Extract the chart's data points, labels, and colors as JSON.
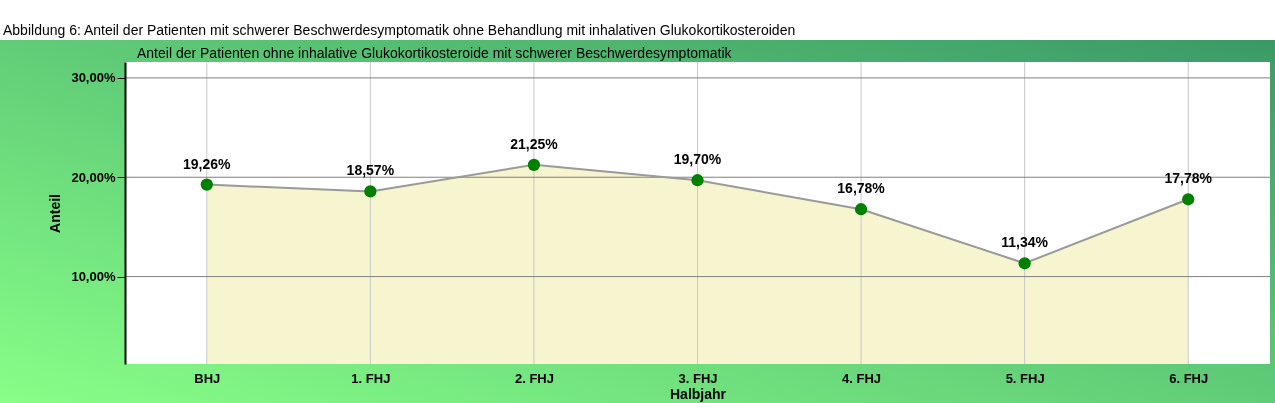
{
  "chart_data": {
    "type": "area",
    "title": "Abbildung 6: Anteil der Patienten mit schwerer Beschwerdesymptomatik ohne Behandlung mit inhalativen Glukokortikosteroiden",
    "subtitle": "Anteil der Patienten ohne inhalative Glukokortikosteroide mit schwerer Beschwerdesymptomatik",
    "xlabel": "Halbjahr",
    "ylabel": "Anteil",
    "categories": [
      "BHJ",
      "1. FHJ",
      "2. FHJ",
      "3. FHJ",
      "4. FHJ",
      "5. FHJ",
      "6. FHJ"
    ],
    "series": [
      {
        "color": "#f7f5cf",
        "values": [
          19.26,
          18.57,
          21.25,
          19.7,
          16.78,
          11.34,
          17.78
        ],
        "value_labels": [
          "19,26%",
          "18,57%",
          "21,25%",
          "19,70%",
          "16,78%",
          "11,34%",
          "17,78%"
        ]
      }
    ],
    "ylim": [
      1.2,
      31.6
    ],
    "yticks": [
      {
        "value": 10,
        "label": "10,00%"
      },
      {
        "value": 20,
        "label": "20,00%"
      },
      {
        "value": 30,
        "label": "30,00%"
      }
    ],
    "grid": true,
    "marker": "circle",
    "line_style": "solid"
  }
}
